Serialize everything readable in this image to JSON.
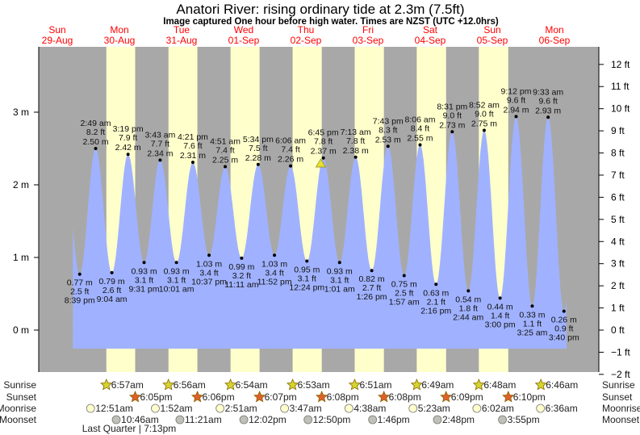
{
  "chart_data": {
    "type": "area",
    "title": "Anatori River: rising  ordinary tide at 2.3m (7.5ft)",
    "subtitle": "Image captured One hour before high water. Times are NZST (UTC +12.0hrs)",
    "days": [
      {
        "dow": "Sun",
        "date": "29-Aug"
      },
      {
        "dow": "Mon",
        "date": "30-Aug"
      },
      {
        "dow": "Tue",
        "date": "31-Aug"
      },
      {
        "dow": "Wed",
        "date": "01-Sep"
      },
      {
        "dow": "Thu",
        "date": "02-Sep"
      },
      {
        "dow": "Fri",
        "date": "03-Sep"
      },
      {
        "dow": "Sat",
        "date": "04-Sep"
      },
      {
        "dow": "Sun",
        "date": "05-Sep"
      },
      {
        "dow": "Mon",
        "date": "06-Sep"
      }
    ],
    "y_axis_left": {
      "unit": "m",
      "ticks": [
        "3 m",
        "2 m",
        "1 m",
        "0 m"
      ],
      "values": [
        3,
        2,
        1,
        0
      ]
    },
    "y_axis_right": {
      "unit": "ft",
      "ticks": [
        "12 ft",
        "11 ft",
        "10 ft",
        "9 ft",
        "8 ft",
        "7 ft",
        "6 ft",
        "5 ft",
        "4 ft",
        "3 ft",
        "2 ft",
        "1 ft",
        "0 ft",
        "−1 ft",
        "−2 ft"
      ],
      "values": [
        12,
        11,
        10,
        9,
        8,
        7,
        6,
        5,
        4,
        3,
        2,
        1,
        0,
        -1,
        -2
      ]
    },
    "ylim_m": [
      -0.58,
      3.9
    ],
    "current_marker": {
      "day": 4,
      "time": "17:45",
      "level_m": 2.3
    },
    "tides": [
      {
        "type": "low",
        "day": 0,
        "t": "20:39",
        "time": "8:39 pm",
        "m": "0.77 m",
        "ft": "2.5 ft",
        "v": 0.77
      },
      {
        "type": "high",
        "day": 1,
        "t": "02:49",
        "time": "2:49 am",
        "m": "2.50 m",
        "ft": "8.2 ft",
        "v": 2.5
      },
      {
        "type": "low",
        "day": 1,
        "t": "09:04",
        "time": "9:04 am",
        "m": "0.79 m",
        "ft": "2.6 ft",
        "v": 0.79
      },
      {
        "type": "high",
        "day": 1,
        "t": "15:19",
        "time": "3:19 pm",
        "m": "2.42 m",
        "ft": "7.9 ft",
        "v": 2.42
      },
      {
        "type": "low",
        "day": 1,
        "t": "21:31",
        "time": "9:31 pm",
        "m": "0.93 m",
        "ft": "3.1 ft",
        "v": 0.93
      },
      {
        "type": "high",
        "day": 2,
        "t": "03:43",
        "time": "3:43 am",
        "m": "2.34 m",
        "ft": "7.7 ft",
        "v": 2.34
      },
      {
        "type": "low",
        "day": 2,
        "t": "10:01",
        "time": "10:01 am",
        "m": "0.93 m",
        "ft": "3.1 ft",
        "v": 0.93
      },
      {
        "type": "high",
        "day": 2,
        "t": "16:21",
        "time": "4:21 pm",
        "m": "2.31 m",
        "ft": "7.6 ft",
        "v": 2.31
      },
      {
        "type": "low",
        "day": 2,
        "t": "22:37",
        "time": "10:37 pm",
        "m": "1.03 m",
        "ft": "3.4 ft",
        "v": 1.03
      },
      {
        "type": "high",
        "day": 3,
        "t": "04:51",
        "time": "4:51 am",
        "m": "2.25 m",
        "ft": "7.4 ft",
        "v": 2.25
      },
      {
        "type": "low",
        "day": 3,
        "t": "11:11",
        "time": "11:11 am",
        "m": "0.99 m",
        "ft": "3.2 ft",
        "v": 0.99
      },
      {
        "type": "high",
        "day": 3,
        "t": "17:34",
        "time": "5:34 pm",
        "m": "2.28 m",
        "ft": "7.5 ft",
        "v": 2.28
      },
      {
        "type": "low",
        "day": 3,
        "t": "23:52",
        "time": "11:52 pm",
        "m": "1.03 m",
        "ft": "3.4 ft",
        "v": 1.03
      },
      {
        "type": "high",
        "day": 4,
        "t": "06:06",
        "time": "6:06 am",
        "m": "2.26 m",
        "ft": "7.4 ft",
        "v": 2.26
      },
      {
        "type": "low",
        "day": 4,
        "t": "12:24",
        "time": "12:24 pm",
        "m": "0.95 m",
        "ft": "3.1 ft",
        "v": 0.95
      },
      {
        "type": "high",
        "day": 4,
        "t": "18:45",
        "time": "6:45 pm",
        "m": "2.37 m",
        "ft": "7.8 ft",
        "v": 2.37
      },
      {
        "type": "low",
        "day": 5,
        "t": "01:01",
        "time": "1:01 am",
        "m": "0.93 m",
        "ft": "3.1 ft",
        "v": 0.93
      },
      {
        "type": "high",
        "day": 5,
        "t": "07:13",
        "time": "7:13 am",
        "m": "2.38 m",
        "ft": "7.8 ft",
        "v": 2.38
      },
      {
        "type": "low",
        "day": 5,
        "t": "13:26",
        "time": "1:26 pm",
        "m": "0.82 m",
        "ft": "2.7 ft",
        "v": 0.82
      },
      {
        "type": "high",
        "day": 5,
        "t": "19:43",
        "time": "7:43 pm",
        "m": "2.53 m",
        "ft": "8.3 ft",
        "v": 2.53
      },
      {
        "type": "low",
        "day": 6,
        "t": "01:57",
        "time": "1:57 am",
        "m": "0.75 m",
        "ft": "2.5 ft",
        "v": 0.75
      },
      {
        "type": "high",
        "day": 6,
        "t": "08:06",
        "time": "8:06 am",
        "m": "2.55 m",
        "ft": "8.4 ft",
        "v": 2.55
      },
      {
        "type": "low",
        "day": 6,
        "t": "14:16",
        "time": "2:16 pm",
        "m": "0.63 m",
        "ft": "2.1 ft",
        "v": 0.63
      },
      {
        "type": "high",
        "day": 6,
        "t": "20:31",
        "time": "8:31 pm",
        "m": "2.73 m",
        "ft": "9.0 ft",
        "v": 2.73
      },
      {
        "type": "low",
        "day": 7,
        "t": "02:44",
        "time": "2:44 am",
        "m": "0.54 m",
        "ft": "1.8 ft",
        "v": 0.54
      },
      {
        "type": "high",
        "day": 7,
        "t": "08:52",
        "time": "8:52 am",
        "m": "2.75 m",
        "ft": "9.0 ft",
        "v": 2.75
      },
      {
        "type": "low",
        "day": 7,
        "t": "15:00",
        "time": "3:00 pm",
        "m": "0.44 m",
        "ft": "1.4 ft",
        "v": 0.44
      },
      {
        "type": "high",
        "day": 7,
        "t": "21:12",
        "time": "9:12 pm",
        "m": "2.94 m",
        "ft": "9.6 ft",
        "v": 2.94
      },
      {
        "type": "low",
        "day": 8,
        "t": "03:25",
        "time": "3:25 am",
        "m": "0.33 m",
        "ft": "1.1 ft",
        "v": 0.33
      },
      {
        "type": "high",
        "day": 8,
        "t": "09:33",
        "time": "9:33 am",
        "m": "2.93 m",
        "ft": "9.6 ft",
        "v": 2.93
      },
      {
        "type": "low",
        "day": 8,
        "t": "15:40",
        "time": "3:40 pm",
        "m": "0.26 m",
        "ft": "0.9 ft",
        "v": 0.26
      }
    ],
    "rows": {
      "sunrise": "Sunrise",
      "sunset": "Sunset",
      "moonrise": "Moonrise",
      "moonset": "Moonset"
    },
    "sunrise": [
      {
        "day": 1,
        "t": "06:57",
        "label": "6:57am"
      },
      {
        "day": 2,
        "t": "06:56",
        "label": "6:56am"
      },
      {
        "day": 3,
        "t": "06:54",
        "label": "6:54am"
      },
      {
        "day": 4,
        "t": "06:53",
        "label": "6:53am"
      },
      {
        "day": 5,
        "t": "06:51",
        "label": "6:51am"
      },
      {
        "day": 6,
        "t": "06:49",
        "label": "6:49am"
      },
      {
        "day": 7,
        "t": "06:48",
        "label": "6:48am"
      },
      {
        "day": 8,
        "t": "06:46",
        "label": "6:46am"
      }
    ],
    "sunset": [
      {
        "day": 1,
        "t": "18:05",
        "label": "6:05pm"
      },
      {
        "day": 2,
        "t": "18:06",
        "label": "6:06pm"
      },
      {
        "day": 3,
        "t": "18:07",
        "label": "6:07pm"
      },
      {
        "day": 4,
        "t": "18:08",
        "label": "6:08pm"
      },
      {
        "day": 5,
        "t": "18:08",
        "label": "6:08pm"
      },
      {
        "day": 6,
        "t": "18:09",
        "label": "6:09pm"
      },
      {
        "day": 7,
        "t": "18:10",
        "label": "6:10pm"
      }
    ],
    "moonrise": [
      {
        "day": 1,
        "t": "00:51",
        "label": "12:51am"
      },
      {
        "day": 2,
        "t": "01:52",
        "label": "1:52am"
      },
      {
        "day": 3,
        "t": "02:51",
        "label": "2:51am"
      },
      {
        "day": 4,
        "t": "03:47",
        "label": "3:47am"
      },
      {
        "day": 5,
        "t": "04:38",
        "label": "4:38am"
      },
      {
        "day": 6,
        "t": "05:23",
        "label": "5:23am"
      },
      {
        "day": 7,
        "t": "06:02",
        "label": "6:02am"
      },
      {
        "day": 8,
        "t": "06:36",
        "label": "6:36am"
      }
    ],
    "moonset": [
      {
        "day": 1,
        "t": "10:46",
        "label": "10:46am"
      },
      {
        "day": 2,
        "t": "11:21",
        "label": "11:21am"
      },
      {
        "day": 3,
        "t": "12:02",
        "label": "12:02pm"
      },
      {
        "day": 4,
        "t": "12:50",
        "label": "12:50pm"
      },
      {
        "day": 5,
        "t": "13:46",
        "label": "1:46pm"
      },
      {
        "day": 6,
        "t": "14:48",
        "label": "2:48pm"
      },
      {
        "day": 7,
        "t": "15:55",
        "label": "3:55pm"
      }
    ],
    "moon_phase": {
      "label": "Last Quarter | 7:13pm",
      "day": 1,
      "t": "19:13"
    },
    "colors": {
      "night": "#a8a8a8",
      "day": "#ffffcc",
      "water": "#a0b2ff",
      "day_label": "#ff0000",
      "sunrise": "#d4d430",
      "sunset": "#e0602a",
      "moonrise": "#ffffcc",
      "moonset": "#c0c0b8"
    }
  }
}
